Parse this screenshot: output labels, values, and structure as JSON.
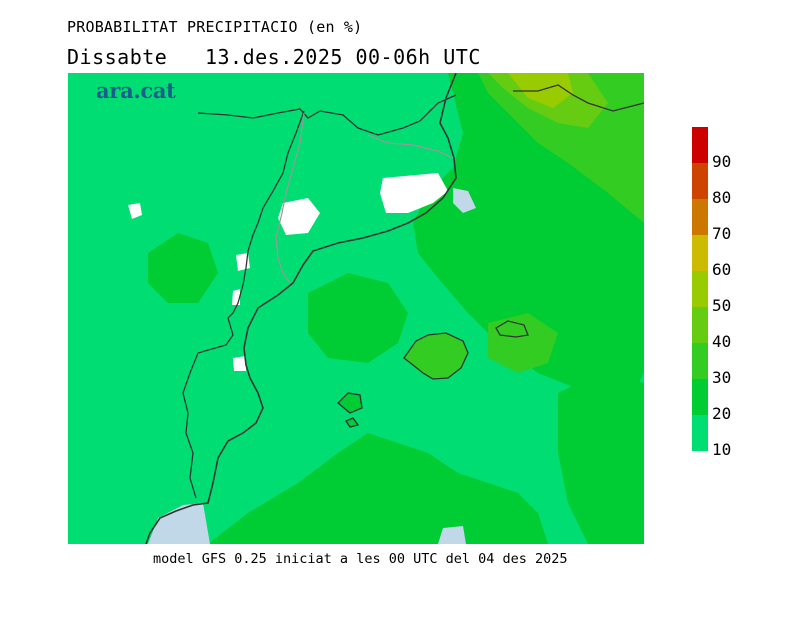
{
  "header": {
    "title": "PROBABILITAT PRECIPITACIO (en %)",
    "subtitle": "Dissabte   13.des.2025 00-06h UTC"
  },
  "logo": {
    "text": "ara.cat",
    "color": "#1b5e8c"
  },
  "footer": {
    "model_text": "model GFS 0.25 iniciat a les 00 UTC del 04 des 2025"
  },
  "map": {
    "region": "Catalunya, Illes Balears",
    "colors": {
      "pct_10_20": "#00dd72",
      "pct_20_30": "#00cc33",
      "pct_30_40": "#33cc22",
      "pct_40_50": "#66cc11",
      "pct_50_60": "#99cc00",
      "sea": "#c0d8e8",
      "no_data": "#ffffff",
      "coastline": "#333333",
      "border": "#999999"
    }
  },
  "legend": {
    "bins": [
      {
        "label": "10",
        "color": "#00dd72"
      },
      {
        "label": "20",
        "color": "#00cc33"
      },
      {
        "label": "30",
        "color": "#33cc22"
      },
      {
        "label": "40",
        "color": "#66cc11"
      },
      {
        "label": "50",
        "color": "#99cc00"
      },
      {
        "label": "60",
        "color": "#ccbb00"
      },
      {
        "label": "70",
        "color": "#cc7700"
      },
      {
        "label": "80",
        "color": "#cc4400"
      },
      {
        "label": "90",
        "color": "#cc0000"
      }
    ]
  }
}
